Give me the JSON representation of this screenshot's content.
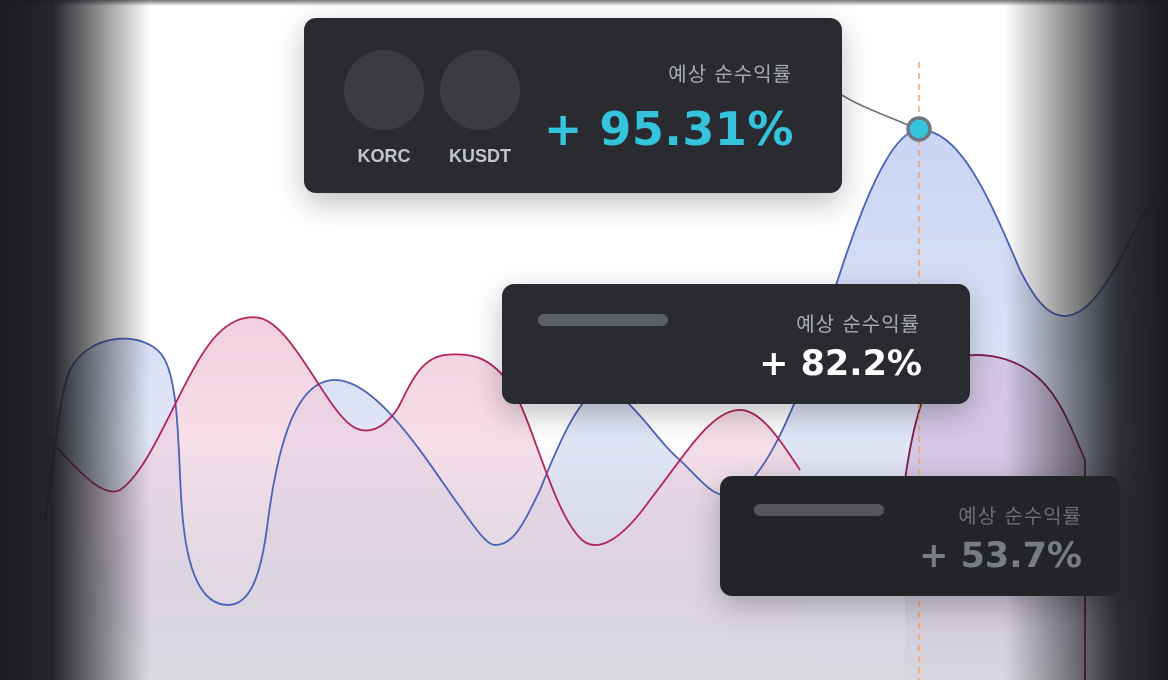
{
  "colors": {
    "accent": "#34c4dc",
    "card_bg": "#2a2b30",
    "series_blue": "#4a62b8",
    "series_pink": "#b2255e",
    "guide_line": "#f4a460"
  },
  "cards": {
    "main": {
      "coins": [
        {
          "name": "KORC",
          "icon": "coin-icon"
        },
        {
          "name": "KUSDT",
          "icon": "coin-icon"
        }
      ],
      "label": "예상 순수익률",
      "value": "+ 95.31%"
    },
    "mid": {
      "label": "예상 순수익률",
      "value": "+ 82.2%"
    },
    "low": {
      "label": "예상 순수익률",
      "value": "+ 53.7%"
    }
  }
}
